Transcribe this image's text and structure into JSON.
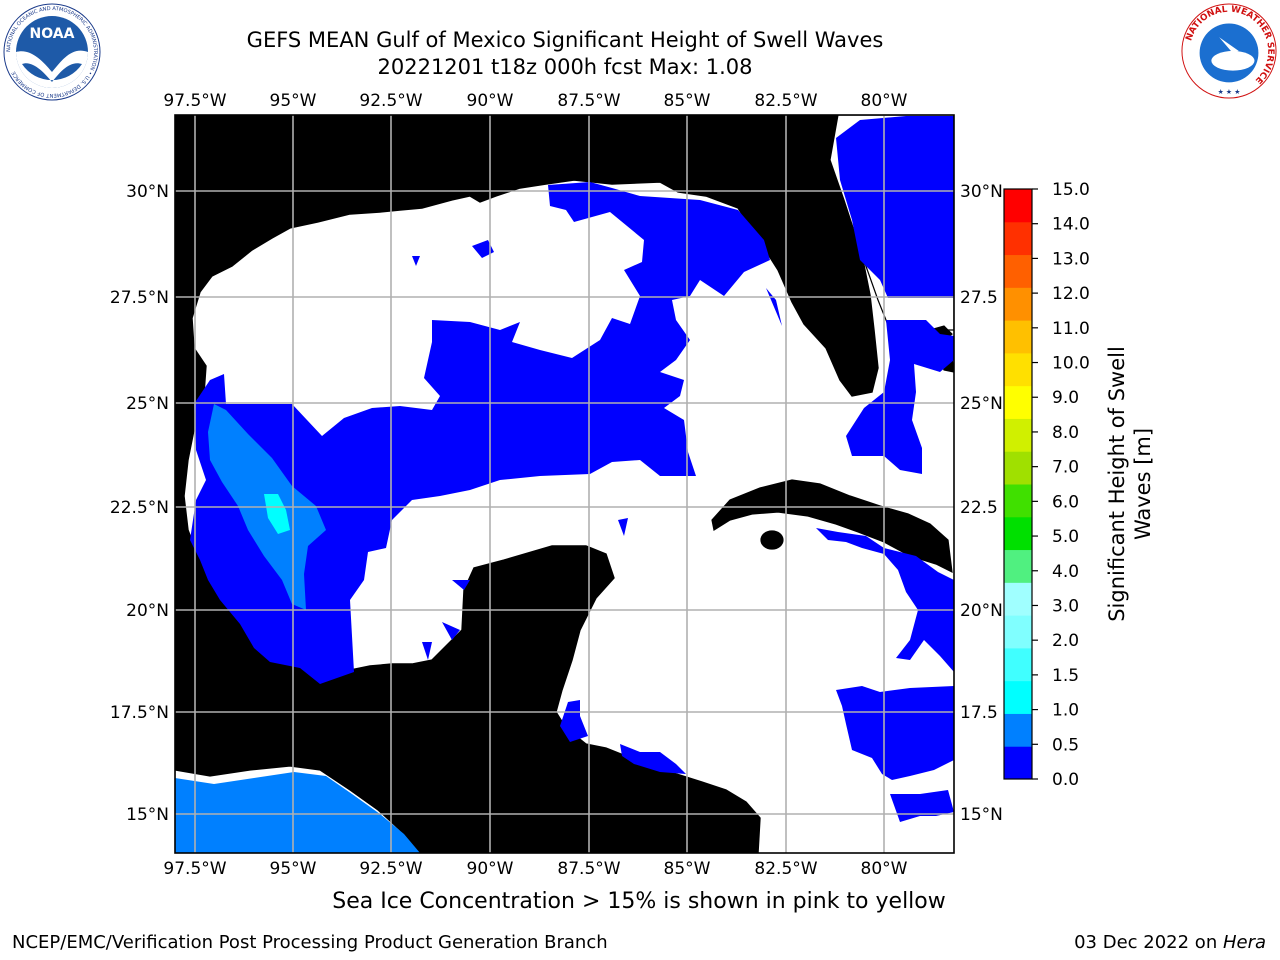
{
  "title": {
    "line1": "GEFS MEAN Gulf of Mexico Significant Height of Swell Waves",
    "line2": "20221201 t18z 000h fcst   Max: 1.08"
  },
  "map": {
    "lon_range": [
      -98,
      -78
    ],
    "lat_range": [
      14,
      32
    ],
    "lon_ticks": [
      "97.5°W",
      "95°W",
      "92.5°W",
      "90°W",
      "87.5°W",
      "85°W",
      "82.5°W",
      "80°W"
    ],
    "lat_ticks": [
      "30°N",
      "27.5°N",
      "25°N",
      "22.5°N",
      "20°N",
      "17.5°N",
      "15°N"
    ],
    "lat_ticks_right": [
      "30°N",
      "27.5",
      "25°N",
      "22.5",
      "20°N",
      "17.5",
      "15°N"
    ],
    "land_color": "#efedde",
    "grid_color": "#b0b0b0"
  },
  "colorbar": {
    "label_line1": "Significant Height of Swell",
    "label_line2": "Waves [m]",
    "levels": [
      "0.0",
      "0.5",
      "1.0",
      "1.5",
      "2.0",
      "3.0",
      "4.0",
      "5.0",
      "6.0",
      "7.0",
      "8.0",
      "9.0",
      "10.0",
      "11.0",
      "12.0",
      "13.0",
      "14.0",
      "15.0"
    ],
    "colors": [
      "#0000ff",
      "#0080ff",
      "#00ffff",
      "#40ffff",
      "#80ffff",
      "#a0ffff",
      "#50f080",
      "#00e000",
      "#40e000",
      "#a0e000",
      "#d0f000",
      "#ffff00",
      "#ffe000",
      "#ffc000",
      "#ff9000",
      "#ff6000",
      "#ff3000",
      "#ff0000"
    ]
  },
  "legend_note": "Sea Ice Concentration > 15% is shown in pink to yellow",
  "footer": {
    "left": "NCEP/EMC/Verification Post Processing Product Generation Branch",
    "right_date": "03 Dec 2022 on ",
    "right_host": "Hera"
  },
  "logos": {
    "noaa_text": "NOAA",
    "noaa_ring": "NATIONAL OCEANIC AND ATMOSPHERIC ADMINISTRATION • U.S. DEPARTMENT OF COMMERCE",
    "nws_ring": "NATIONAL WEATHER SERVICE"
  }
}
